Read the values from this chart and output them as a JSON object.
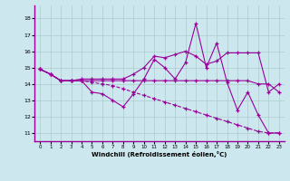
{
  "xlabel": "Windchill (Refroidissement éolien,°C)",
  "background_color": "#cce8ee",
  "line_color": "#990099",
  "grid_color": "#aacccc",
  "xlim": [
    -0.5,
    23.5
  ],
  "ylim": [
    10.5,
    18.8
  ],
  "yticks": [
    11,
    12,
    13,
    14,
    15,
    16,
    17,
    18
  ],
  "xticks": [
    0,
    1,
    2,
    3,
    4,
    5,
    6,
    7,
    8,
    9,
    10,
    11,
    12,
    13,
    14,
    15,
    16,
    17,
    18,
    19,
    20,
    21,
    22,
    23
  ],
  "series": [
    {
      "y": [
        14.9,
        14.6,
        14.2,
        14.2,
        14.2,
        13.5,
        13.4,
        13.0,
        12.6,
        13.4,
        14.3,
        15.5,
        15.0,
        14.3,
        15.3,
        17.7,
        15.0,
        16.5,
        14.1,
        12.4,
        13.5,
        12.1,
        11.0,
        11.0
      ],
      "ls": "solid"
    },
    {
      "y": [
        14.9,
        14.6,
        14.2,
        14.2,
        14.3,
        14.3,
        14.3,
        14.3,
        14.3,
        14.6,
        15.0,
        15.7,
        15.6,
        15.8,
        16.0,
        15.7,
        15.2,
        15.4,
        15.9,
        15.9,
        15.9,
        15.9,
        13.5,
        14.0
      ],
      "ls": "solid"
    },
    {
      "y": [
        14.9,
        14.6,
        14.2,
        14.2,
        14.2,
        14.2,
        14.2,
        14.2,
        14.2,
        14.2,
        14.2,
        14.2,
        14.2,
        14.2,
        14.2,
        14.2,
        14.2,
        14.2,
        14.2,
        14.2,
        14.2,
        14.0,
        14.0,
        13.5
      ],
      "ls": "solid"
    },
    {
      "y": [
        14.9,
        14.6,
        14.2,
        14.2,
        14.2,
        14.1,
        14.0,
        13.9,
        13.7,
        13.5,
        13.3,
        13.1,
        12.9,
        12.7,
        12.5,
        12.3,
        12.1,
        11.9,
        11.7,
        11.5,
        11.3,
        11.1,
        11.0,
        11.0
      ],
      "ls": "dashed"
    }
  ]
}
